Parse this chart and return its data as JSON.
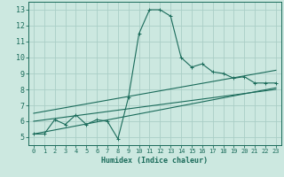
{
  "xlabel": "Humidex (Indice chaleur)",
  "ylabel": "",
  "bg_color": "#cce8e0",
  "grid_color": "#aacec6",
  "line_color": "#1a6b5a",
  "xlim": [
    -0.5,
    23.5
  ],
  "ylim": [
    4.5,
    13.5
  ],
  "xticks": [
    0,
    1,
    2,
    3,
    4,
    5,
    6,
    7,
    8,
    9,
    10,
    11,
    12,
    13,
    14,
    15,
    16,
    17,
    18,
    19,
    20,
    21,
    22,
    23
  ],
  "yticks": [
    5,
    6,
    7,
    8,
    9,
    10,
    11,
    12,
    13
  ],
  "line1_x": [
    0,
    1,
    2,
    3,
    4,
    5,
    6,
    7,
    8,
    9,
    10,
    11,
    12,
    13,
    14,
    15,
    16,
    17,
    18,
    19,
    20,
    21,
    22,
    23
  ],
  "line1_y": [
    5.2,
    5.2,
    6.1,
    5.8,
    6.4,
    5.8,
    6.1,
    6.0,
    4.9,
    7.5,
    11.5,
    13.0,
    13.0,
    12.6,
    10.0,
    9.4,
    9.6,
    9.1,
    9.0,
    8.7,
    8.8,
    8.4,
    8.4,
    8.4
  ],
  "line2_x": [
    0,
    23
  ],
  "line2_y": [
    5.2,
    8.1
  ],
  "line3_x": [
    0,
    23
  ],
  "line3_y": [
    6.5,
    9.2
  ],
  "line4_x": [
    0,
    23
  ],
  "line4_y": [
    6.0,
    8.0
  ]
}
